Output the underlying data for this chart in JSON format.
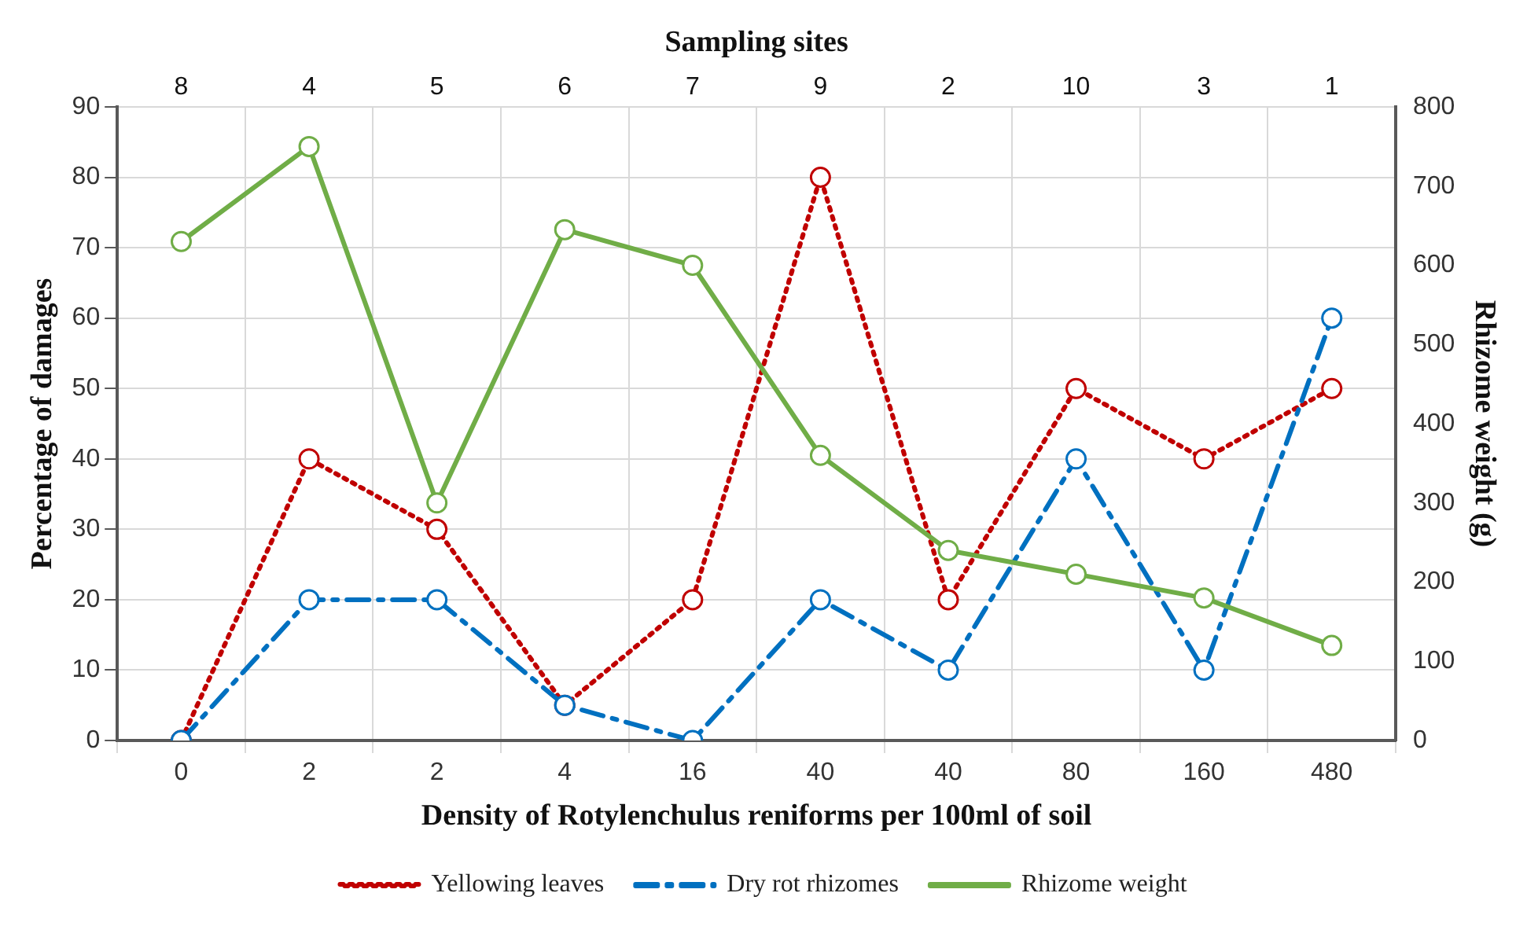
{
  "chart_data": {
    "type": "line",
    "xlabel": "Density of Rotylenchulus reniforms per 100ml of soil",
    "x2label": "Sampling sites",
    "ylabel": "Percentage of damages",
    "y2label": "Rhizome weight (g)",
    "categories": [
      "0",
      "2",
      "2",
      "4",
      "16",
      "40",
      "40",
      "80",
      "160",
      "480"
    ],
    "annotations": [
      "8",
      "4",
      "5",
      "6",
      "7",
      "9",
      "2",
      "10",
      "3",
      "1"
    ],
    "series": [
      {
        "name": "Yellowing leaves",
        "color": "#c00000",
        "line_style": "dotted",
        "values": [
          0,
          40,
          30,
          5,
          20,
          80,
          20,
          50,
          40,
          50
        ]
      },
      {
        "name": "Dry rot rhizomes",
        "color": "#0070c0",
        "line_style": "dashed",
        "values": [
          0,
          20,
          20,
          5,
          0,
          20,
          10,
          40,
          10,
          60
        ]
      },
      {
        "name": "Rhizome weight",
        "color": "#70ad47",
        "line_style": "solid",
        "axis": "y2",
        "values": [
          630,
          750,
          300,
          645,
          600,
          360,
          240,
          210,
          180,
          120
        ]
      }
    ],
    "ylim": [
      0,
      90
    ],
    "yticks": [
      0,
      10,
      20,
      30,
      40,
      50,
      60,
      70,
      80,
      90
    ],
    "y2lim": [
      0,
      800
    ],
    "y2ticks": [
      0,
      100,
      200,
      300,
      400,
      500,
      600,
      700,
      800
    ],
    "grid": true,
    "legend": "bottom",
    "marker": "circle"
  }
}
